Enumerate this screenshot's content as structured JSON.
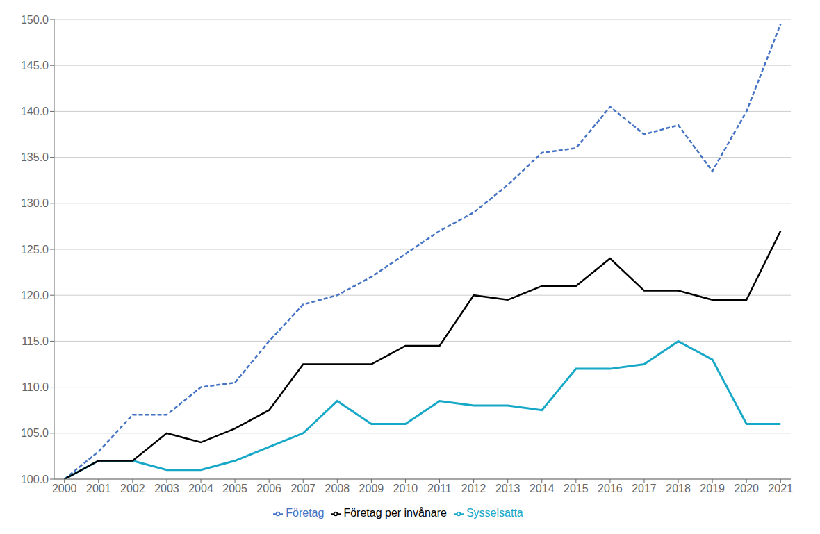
{
  "chart_data": {
    "type": "line",
    "x": [
      2000,
      2001,
      2002,
      2003,
      2004,
      2005,
      2006,
      2007,
      2008,
      2009,
      2010,
      2011,
      2012,
      2013,
      2014,
      2015,
      2016,
      2017,
      2018,
      2019,
      2020,
      2021
    ],
    "series": [
      {
        "name": "Företag",
        "color": "#4472C4",
        "line_style": "dashed",
        "values": [
          100.0,
          103.0,
          107.0,
          107.0,
          110.0,
          110.5,
          115.0,
          119.0,
          120.0,
          122.0,
          124.5,
          127.0,
          129.0,
          132.0,
          135.5,
          136.0,
          140.5,
          137.5,
          138.5,
          133.5,
          140.0,
          149.5
        ]
      },
      {
        "name": "Sysselsatta",
        "color": "#17A8C8",
        "line_style": "solid",
        "values": [
          100.0,
          102.0,
          102.0,
          101.0,
          101.0,
          102.0,
          103.5,
          105.0,
          108.5,
          106.0,
          106.0,
          108.5,
          108.0,
          108.0,
          107.5,
          112.0,
          112.0,
          112.5,
          115.0,
          113.0,
          106.0,
          106.0
        ]
      },
      {
        "name": "Företag per invånare",
        "color": "#000000",
        "line_style": "solid",
        "values": [
          100.0,
          102.0,
          102.0,
          105.0,
          104.0,
          105.5,
          107.5,
          112.5,
          112.5,
          112.5,
          114.5,
          114.5,
          120.0,
          119.5,
          121.0,
          121.0,
          124.0,
          120.5,
          120.5,
          119.5,
          119.5,
          127.0
        ]
      }
    ],
    "xlim": [
      1999.7,
      2021.3
    ],
    "xticks": [
      2000,
      2001,
      2002,
      2003,
      2004,
      2005,
      2006,
      2007,
      2008,
      2009,
      2010,
      2011,
      2012,
      2013,
      2014,
      2015,
      2016,
      2017,
      2018,
      2019,
      2020,
      2021
    ],
    "ylim": [
      100.0,
      150.0
    ],
    "yticks": [
      {
        "value": 100,
        "label": "100.0"
      },
      {
        "value": 105,
        "label": "105.0"
      },
      {
        "value": 110,
        "label": "110.0"
      },
      {
        "value": 115,
        "label": "115.0"
      },
      {
        "value": 120,
        "label": "120.0"
      },
      {
        "value": 125,
        "label": "125.0"
      },
      {
        "value": 130,
        "label": "130.0"
      },
      {
        "value": 135,
        "label": "135.0"
      },
      {
        "value": 140,
        "label": "140.0"
      },
      {
        "value": 145,
        "label": "145.0"
      },
      {
        "value": 150,
        "label": "150.0"
      }
    ],
    "grid": "y",
    "legend": "bottom"
  }
}
